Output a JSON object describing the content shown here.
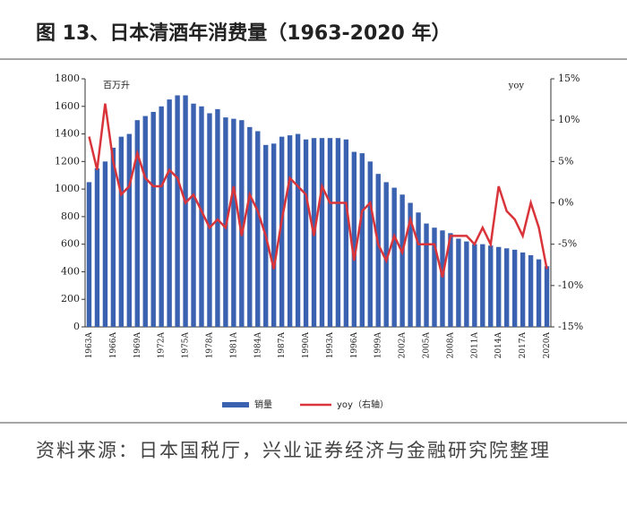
{
  "chart_data": {
    "type": "bar_line",
    "title": "图 13、日本清酒年消费量（1963-2020 年）",
    "y_label": "百万升",
    "y2_label": "yoy",
    "source": "资料来源：日本国税厅，兴业证券经济与金融研究院整理",
    "categories": [
      "1963A",
      null,
      null,
      "1966A",
      null,
      null,
      "1969A",
      null,
      null,
      "1972A",
      null,
      null,
      "1975A",
      null,
      null,
      "1978A",
      null,
      null,
      "1981A",
      null,
      null,
      "1984A",
      null,
      null,
      "1987A",
      null,
      null,
      "1990A",
      null,
      null,
      "1993A",
      null,
      null,
      "1996A",
      null,
      null,
      "1999A",
      null,
      null,
      "2002A",
      null,
      null,
      "2005A",
      null,
      null,
      "2008A",
      null,
      null,
      "2011A",
      null,
      null,
      "2014A",
      null,
      null,
      "2017A",
      null,
      null,
      "2020A"
    ],
    "series": [
      {
        "name": "销量",
        "color": "#3a62b0",
        "axis": "y",
        "values": [
          1050,
          1150,
          1200,
          1300,
          1380,
          1400,
          1500,
          1530,
          1560,
          1600,
          1650,
          1680,
          1680,
          1620,
          1600,
          1550,
          1580,
          1520,
          1510,
          1500,
          1450,
          1420,
          1320,
          1330,
          1380,
          1390,
          1400,
          1360,
          1370,
          1370,
          1370,
          1370,
          1360,
          1270,
          1260,
          1200,
          1110,
          1050,
          1010,
          960,
          900,
          830,
          750,
          720,
          700,
          680,
          640,
          620,
          600,
          600,
          590,
          580,
          570,
          560,
          540,
          520,
          490,
          440
        ]
      },
      {
        "name": "yoy（右轴）",
        "color": "#d9343a",
        "axis": "y2",
        "values": [
          8,
          4,
          12,
          5,
          1,
          2,
          6,
          3,
          2,
          2,
          4,
          3,
          0,
          1,
          -1,
          -3,
          -2,
          -3,
          2,
          -4,
          1,
          -1,
          -4,
          -8,
          -2,
          3,
          2,
          1,
          -4,
          2,
          0,
          0,
          0,
          -7,
          -1,
          0,
          -5,
          -7,
          -4,
          -6,
          -2,
          -5,
          -5,
          -5,
          -9,
          -4,
          -4,
          -4,
          -5,
          -3,
          -5,
          2,
          -1,
          -2,
          -4,
          0,
          -3,
          -8
        ]
      }
    ],
    "ylim": [
      0,
      1800
    ],
    "yticks": [
      0,
      200,
      400,
      600,
      800,
      1000,
      1200,
      1400,
      1600,
      1800
    ],
    "y2lim": [
      -15,
      15
    ],
    "y2ticks": [
      {
        "value": -15,
        "label": "-15%"
      },
      {
        "value": -10,
        "label": "-10%"
      },
      {
        "value": -5,
        "label": "-5%"
      },
      {
        "value": 0,
        "label": "0%"
      },
      {
        "value": 5,
        "label": "5%"
      },
      {
        "value": 10,
        "label": "10%"
      },
      {
        "value": 15,
        "label": "15%"
      }
    ],
    "grid": false
  }
}
